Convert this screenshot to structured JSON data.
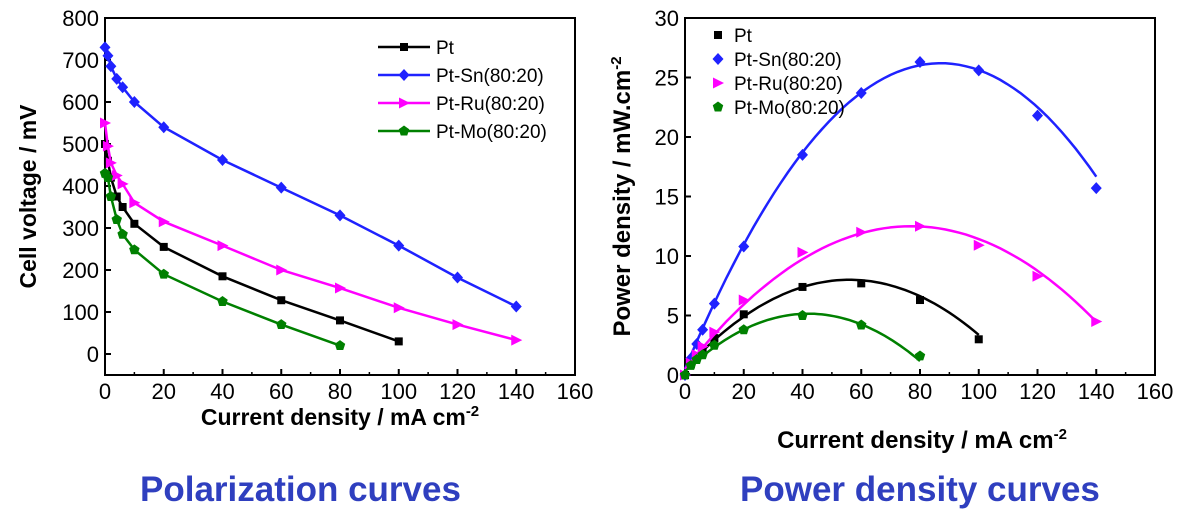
{
  "colors": {
    "Pt": "#000000",
    "Pt-Sn(80:20)": "#1f22ff",
    "Pt-Ru(80:20)": "#ff00ff",
    "Pt-Mo(80:20)": "#008000",
    "caption": "#2f3fbf"
  },
  "captions": {
    "left": "Polarization curves",
    "right": "Power density curves"
  },
  "chart_data": [
    {
      "type": "line",
      "title": "",
      "xlabel": "Current density / mA cm-2",
      "xlabel_main": "Current density / mA cm",
      "xlabel_sup": "-2",
      "ylabel": "Cell voltage / mV",
      "xlim": [
        0,
        160
      ],
      "ylim": [
        -50,
        800
      ],
      "xticks": [
        "0",
        "20",
        "40",
        "60",
        "80",
        "100",
        "120",
        "140",
        "160"
      ],
      "yticks": [
        "0",
        "100",
        "200",
        "300",
        "400",
        "500",
        "600",
        "700",
        "800"
      ],
      "grid": false,
      "legend": "top-right",
      "series": [
        {
          "name": "Pt",
          "marker": "square",
          "x": [
            0,
            1,
            2,
            4,
            6,
            10,
            20,
            40,
            60,
            80,
            100
          ],
          "y": [
            500,
            460,
            420,
            375,
            350,
            310,
            255,
            185,
            128,
            80,
            30
          ]
        },
        {
          "name": "Pt-Sn(80:20)",
          "marker": "diamond",
          "x": [
            0,
            1,
            2,
            4,
            6,
            10,
            20,
            40,
            60,
            80,
            100,
            120,
            140
          ],
          "y": [
            730,
            710,
            685,
            655,
            635,
            600,
            540,
            462,
            396,
            330,
            258,
            182,
            113
          ]
        },
        {
          "name": "Pt-Ru(80:20)",
          "marker": "triangle-right",
          "x": [
            0,
            1,
            2,
            4,
            6,
            10,
            20,
            40,
            60,
            80,
            100,
            120,
            140
          ],
          "y": [
            550,
            495,
            455,
            425,
            405,
            360,
            315,
            258,
            200,
            157,
            110,
            70,
            33
          ]
        },
        {
          "name": "Pt-Mo(80:20)",
          "marker": "pentagon",
          "x": [
            0,
            1,
            2,
            4,
            6,
            10,
            20,
            40,
            60,
            80
          ],
          "y": [
            430,
            420,
            375,
            320,
            285,
            248,
            190,
            125,
            70,
            20
          ]
        }
      ]
    },
    {
      "type": "scatter",
      "title": "",
      "xlabel": "Current density / mA cm-2",
      "xlabel_main": "Current density / mA cm",
      "xlabel_sup": "-2",
      "ylabel": "Power density / mW.cm-2",
      "ylabel_main": "Power density / mW.cm",
      "ylabel_sup": "-2",
      "xlim": [
        0,
        160
      ],
      "ylim": [
        0,
        30
      ],
      "xticks": [
        "0",
        "20",
        "40",
        "60",
        "80",
        "100",
        "120",
        "140",
        "160"
      ],
      "yticks": [
        "0",
        "5",
        "10",
        "15",
        "20",
        "25",
        "30"
      ],
      "grid": false,
      "legend": "top-left",
      "series": [
        {
          "name": "Pt",
          "marker": "square",
          "x": [
            0,
            2,
            4,
            6,
            10,
            20,
            40,
            60,
            80,
            100
          ],
          "y": [
            0,
            0.9,
            1.5,
            2.1,
            3.1,
            5.1,
            7.4,
            7.7,
            6.3,
            3.0
          ],
          "fit": {
            "type": "poly2",
            "x0": 0,
            "y0": 0.5,
            "xv": 56,
            "yv": 8.0,
            "x_end": 100
          }
        },
        {
          "name": "Pt-Sn(80:20)",
          "marker": "diamond",
          "x": [
            0,
            2,
            4,
            6,
            10,
            20,
            40,
            60,
            80,
            100,
            120,
            140
          ],
          "y": [
            0,
            1.4,
            2.6,
            3.8,
            6.0,
            10.8,
            18.5,
            23.7,
            26.3,
            25.6,
            21.8,
            15.7
          ],
          "fit": {
            "type": "poly2",
            "x0": 0,
            "y0": 0.5,
            "xv": 87,
            "yv": 26.2,
            "x_end": 140
          }
        },
        {
          "name": "Pt-Ru(80:20)",
          "marker": "triangle-right",
          "x": [
            0,
            2,
            4,
            6,
            10,
            20,
            40,
            60,
            80,
            100,
            120,
            140
          ],
          "y": [
            0,
            1.0,
            1.7,
            2.4,
            3.6,
            6.3,
            10.3,
            12.0,
            12.5,
            10.9,
            8.3,
            4.5
          ],
          "fit": {
            "type": "poly2",
            "x0": 0,
            "y0": 0.5,
            "xv": 77,
            "yv": 12.5,
            "x_end": 140
          }
        },
        {
          "name": "Pt-Mo(80:20)",
          "marker": "pentagon",
          "x": [
            0,
            2,
            4,
            6,
            10,
            20,
            40,
            60,
            80
          ],
          "y": [
            0,
            0.8,
            1.3,
            1.7,
            2.5,
            3.8,
            5.0,
            4.2,
            1.6
          ],
          "fit": {
            "type": "poly2",
            "x0": 0,
            "y0": 0.3,
            "xv": 42,
            "yv": 5.15,
            "x_end": 80
          }
        }
      ]
    }
  ]
}
